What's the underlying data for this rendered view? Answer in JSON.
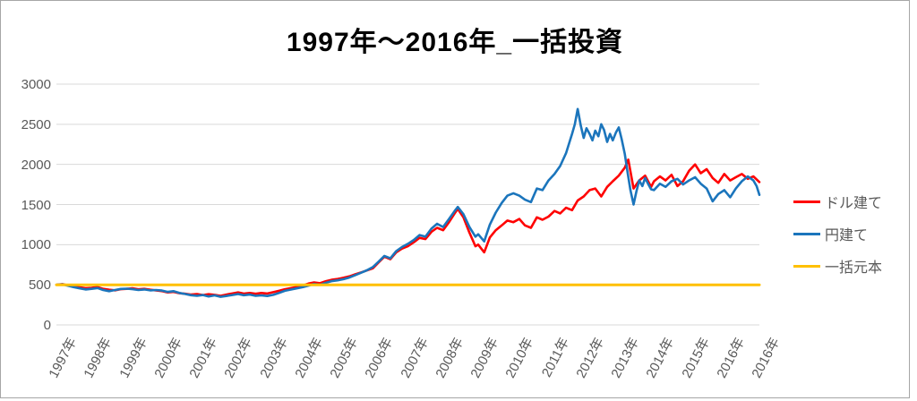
{
  "chart_data": {
    "type": "line",
    "title": "1997年～2016年_一括投資",
    "xlabel": "",
    "ylabel": "",
    "grid": true,
    "legend_position": "right",
    "y_axis": {
      "range": [
        0,
        3000
      ],
      "ticks": [
        0,
        500,
        1000,
        1500,
        2000,
        2500,
        3000
      ]
    },
    "x_axis": {
      "range_years": [
        1997,
        2017
      ],
      "tick_months": [
        0,
        12,
        24,
        36,
        48,
        60,
        72,
        84,
        96,
        108,
        120,
        132,
        144,
        156,
        168,
        180,
        192,
        204,
        216,
        228,
        240
      ],
      "tick_labels": [
        "1997年",
        "1998年",
        "1999年",
        "2000年",
        "2001年",
        "2002年",
        "2003年",
        "2004年",
        "2005年",
        "2006年",
        "2007年",
        "2008年",
        "2009年",
        "2010年",
        "2011年",
        "2012年",
        "2013年",
        "2014年",
        "2015年",
        "2016年",
        "2016年"
      ]
    },
    "series": [
      {
        "name": "ドル建て",
        "color": "#FF0000",
        "points": [
          [
            1997.0,
            500
          ],
          [
            1997.17,
            508
          ],
          [
            1997.33,
            492
          ],
          [
            1997.5,
            478
          ],
          [
            1997.67,
            468
          ],
          [
            1997.83,
            458
          ],
          [
            1998.0,
            462
          ],
          [
            1998.17,
            472
          ],
          [
            1998.33,
            450
          ],
          [
            1998.5,
            438
          ],
          [
            1998.67,
            430
          ],
          [
            1998.83,
            445
          ],
          [
            1999.0,
            450
          ],
          [
            1999.17,
            456
          ],
          [
            1999.33,
            444
          ],
          [
            1999.5,
            450
          ],
          [
            1999.67,
            438
          ],
          [
            1999.83,
            430
          ],
          [
            2000.0,
            422
          ],
          [
            2000.17,
            405
          ],
          [
            2000.33,
            412
          ],
          [
            2000.5,
            395
          ],
          [
            2000.67,
            388
          ],
          [
            2000.83,
            378
          ],
          [
            2001.0,
            385
          ],
          [
            2001.17,
            372
          ],
          [
            2001.33,
            382
          ],
          [
            2001.5,
            375
          ],
          [
            2001.67,
            362
          ],
          [
            2001.83,
            378
          ],
          [
            2002.0,
            392
          ],
          [
            2002.17,
            405
          ],
          [
            2002.33,
            390
          ],
          [
            2002.5,
            398
          ],
          [
            2002.67,
            388
          ],
          [
            2002.83,
            398
          ],
          [
            2003.0,
            392
          ],
          [
            2003.17,
            408
          ],
          [
            2003.33,
            425
          ],
          [
            2003.5,
            445
          ],
          [
            2003.67,
            458
          ],
          [
            2003.83,
            472
          ],
          [
            2004.0,
            490
          ],
          [
            2004.17,
            515
          ],
          [
            2004.33,
            530
          ],
          [
            2004.5,
            520
          ],
          [
            2004.67,
            545
          ],
          [
            2004.83,
            562
          ],
          [
            2005.0,
            572
          ],
          [
            2005.17,
            588
          ],
          [
            2005.33,
            605
          ],
          [
            2005.5,
            630
          ],
          [
            2005.67,
            655
          ],
          [
            2005.83,
            678
          ],
          [
            2006.0,
            705
          ],
          [
            2006.17,
            780
          ],
          [
            2006.33,
            850
          ],
          [
            2006.5,
            820
          ],
          [
            2006.67,
            905
          ],
          [
            2006.83,
            950
          ],
          [
            2007.0,
            980
          ],
          [
            2007.17,
            1030
          ],
          [
            2007.33,
            1085
          ],
          [
            2007.5,
            1070
          ],
          [
            2007.67,
            1160
          ],
          [
            2007.83,
            1210
          ],
          [
            2008.0,
            1180
          ],
          [
            2008.17,
            1280
          ],
          [
            2008.33,
            1390
          ],
          [
            2008.42,
            1445
          ],
          [
            2008.58,
            1340
          ],
          [
            2008.75,
            1150
          ],
          [
            2008.92,
            980
          ],
          [
            2009.0,
            1000
          ],
          [
            2009.17,
            905
          ],
          [
            2009.33,
            1090
          ],
          [
            2009.5,
            1180
          ],
          [
            2009.67,
            1240
          ],
          [
            2009.83,
            1300
          ],
          [
            2010.0,
            1280
          ],
          [
            2010.17,
            1320
          ],
          [
            2010.33,
            1240
          ],
          [
            2010.5,
            1210
          ],
          [
            2010.67,
            1340
          ],
          [
            2010.83,
            1310
          ],
          [
            2011.0,
            1350
          ],
          [
            2011.17,
            1420
          ],
          [
            2011.33,
            1390
          ],
          [
            2011.5,
            1460
          ],
          [
            2011.67,
            1430
          ],
          [
            2011.83,
            1550
          ],
          [
            2012.0,
            1600
          ],
          [
            2012.17,
            1680
          ],
          [
            2012.33,
            1700
          ],
          [
            2012.5,
            1600
          ],
          [
            2012.67,
            1720
          ],
          [
            2012.83,
            1790
          ],
          [
            2013.0,
            1860
          ],
          [
            2013.17,
            1960
          ],
          [
            2013.27,
            2060
          ],
          [
            2013.42,
            1700
          ],
          [
            2013.58,
            1800
          ],
          [
            2013.75,
            1860
          ],
          [
            2013.92,
            1720
          ],
          [
            2014.0,
            1790
          ],
          [
            2014.17,
            1850
          ],
          [
            2014.33,
            1800
          ],
          [
            2014.5,
            1870
          ],
          [
            2014.67,
            1730
          ],
          [
            2014.83,
            1790
          ],
          [
            2015.0,
            1920
          ],
          [
            2015.17,
            2000
          ],
          [
            2015.33,
            1890
          ],
          [
            2015.5,
            1940
          ],
          [
            2015.67,
            1830
          ],
          [
            2015.83,
            1770
          ],
          [
            2016.0,
            1880
          ],
          [
            2016.17,
            1800
          ],
          [
            2016.33,
            1840
          ],
          [
            2016.5,
            1880
          ],
          [
            2016.67,
            1820
          ],
          [
            2016.83,
            1850
          ],
          [
            2017.0,
            1780
          ]
        ]
      },
      {
        "name": "円建て",
        "color": "#1B75BC",
        "points": [
          [
            1997.0,
            500
          ],
          [
            1997.17,
            505
          ],
          [
            1997.33,
            488
          ],
          [
            1997.5,
            470
          ],
          [
            1997.67,
            455
          ],
          [
            1997.83,
            442
          ],
          [
            1998.0,
            450
          ],
          [
            1998.17,
            460
          ],
          [
            1998.33,
            435
          ],
          [
            1998.5,
            420
          ],
          [
            1998.67,
            435
          ],
          [
            1998.83,
            448
          ],
          [
            1999.0,
            452
          ],
          [
            1999.17,
            445
          ],
          [
            1999.33,
            435
          ],
          [
            1999.5,
            442
          ],
          [
            1999.67,
            430
          ],
          [
            1999.83,
            435
          ],
          [
            2000.0,
            428
          ],
          [
            2000.17,
            412
          ],
          [
            2000.33,
            420
          ],
          [
            2000.5,
            398
          ],
          [
            2000.67,
            385
          ],
          [
            2000.83,
            370
          ],
          [
            2001.0,
            362
          ],
          [
            2001.17,
            372
          ],
          [
            2001.33,
            355
          ],
          [
            2001.5,
            368
          ],
          [
            2001.67,
            350
          ],
          [
            2001.83,
            360
          ],
          [
            2002.0,
            372
          ],
          [
            2002.17,
            385
          ],
          [
            2002.33,
            370
          ],
          [
            2002.5,
            378
          ],
          [
            2002.67,
            362
          ],
          [
            2002.83,
            368
          ],
          [
            2003.0,
            360
          ],
          [
            2003.17,
            375
          ],
          [
            2003.33,
            398
          ],
          [
            2003.5,
            425
          ],
          [
            2003.67,
            440
          ],
          [
            2003.83,
            455
          ],
          [
            2004.0,
            470
          ],
          [
            2004.17,
            490
          ],
          [
            2004.33,
            510
          ],
          [
            2004.5,
            500
          ],
          [
            2004.67,
            525
          ],
          [
            2004.83,
            545
          ],
          [
            2005.0,
            555
          ],
          [
            2005.17,
            570
          ],
          [
            2005.33,
            590
          ],
          [
            2005.5,
            620
          ],
          [
            2005.67,
            650
          ],
          [
            2005.83,
            680
          ],
          [
            2006.0,
            720
          ],
          [
            2006.17,
            790
          ],
          [
            2006.33,
            860
          ],
          [
            2006.5,
            830
          ],
          [
            2006.67,
            920
          ],
          [
            2006.83,
            970
          ],
          [
            2007.0,
            1010
          ],
          [
            2007.17,
            1060
          ],
          [
            2007.33,
            1120
          ],
          [
            2007.5,
            1100
          ],
          [
            2007.67,
            1200
          ],
          [
            2007.83,
            1260
          ],
          [
            2008.0,
            1220
          ],
          [
            2008.17,
            1320
          ],
          [
            2008.33,
            1420
          ],
          [
            2008.42,
            1470
          ],
          [
            2008.58,
            1380
          ],
          [
            2008.75,
            1220
          ],
          [
            2008.92,
            1100
          ],
          [
            2009.0,
            1130
          ],
          [
            2009.17,
            1040
          ],
          [
            2009.33,
            1250
          ],
          [
            2009.5,
            1400
          ],
          [
            2009.67,
            1520
          ],
          [
            2009.83,
            1610
          ],
          [
            2010.0,
            1640
          ],
          [
            2010.17,
            1610
          ],
          [
            2010.33,
            1560
          ],
          [
            2010.5,
            1530
          ],
          [
            2010.67,
            1700
          ],
          [
            2010.83,
            1680
          ],
          [
            2011.0,
            1800
          ],
          [
            2011.17,
            1880
          ],
          [
            2011.33,
            1980
          ],
          [
            2011.5,
            2140
          ],
          [
            2011.67,
            2380
          ],
          [
            2011.75,
            2500
          ],
          [
            2011.83,
            2690
          ],
          [
            2011.92,
            2480
          ],
          [
            2012.0,
            2330
          ],
          [
            2012.08,
            2450
          ],
          [
            2012.17,
            2380
          ],
          [
            2012.25,
            2300
          ],
          [
            2012.33,
            2420
          ],
          [
            2012.42,
            2350
          ],
          [
            2012.5,
            2500
          ],
          [
            2012.58,
            2430
          ],
          [
            2012.67,
            2280
          ],
          [
            2012.75,
            2380
          ],
          [
            2012.83,
            2300
          ],
          [
            2012.92,
            2400
          ],
          [
            2013.0,
            2460
          ],
          [
            2013.08,
            2320
          ],
          [
            2013.17,
            2130
          ],
          [
            2013.25,
            1900
          ],
          [
            2013.33,
            1680
          ],
          [
            2013.42,
            1500
          ],
          [
            2013.5,
            1660
          ],
          [
            2013.58,
            1800
          ],
          [
            2013.67,
            1730
          ],
          [
            2013.75,
            1830
          ],
          [
            2013.83,
            1760
          ],
          [
            2013.92,
            1690
          ],
          [
            2014.0,
            1680
          ],
          [
            2014.17,
            1760
          ],
          [
            2014.33,
            1720
          ],
          [
            2014.5,
            1790
          ],
          [
            2014.67,
            1820
          ],
          [
            2014.83,
            1750
          ],
          [
            2015.0,
            1800
          ],
          [
            2015.17,
            1840
          ],
          [
            2015.33,
            1760
          ],
          [
            2015.5,
            1700
          ],
          [
            2015.67,
            1540
          ],
          [
            2015.83,
            1630
          ],
          [
            2016.0,
            1680
          ],
          [
            2016.17,
            1590
          ],
          [
            2016.33,
            1700
          ],
          [
            2016.5,
            1790
          ],
          [
            2016.67,
            1850
          ],
          [
            2016.83,
            1800
          ],
          [
            2016.92,
            1730
          ],
          [
            2017.0,
            1620
          ]
        ]
      },
      {
        "name": "一括元本",
        "color": "#FFC000",
        "points": [
          [
            1997.0,
            500
          ],
          [
            2017.0,
            500
          ]
        ]
      }
    ],
    "style": {
      "grid_color": "#D9D9D9",
      "axis_text_color": "#595959",
      "frame_border_color": "#A6A6A6",
      "title_color": "#000000"
    }
  }
}
